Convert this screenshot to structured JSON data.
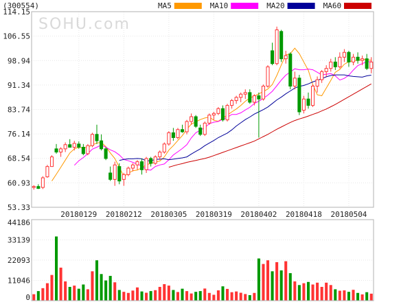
{
  "header": {
    "code": "(300554)",
    "watermark": "SOHU.com"
  },
  "legend": [
    {
      "label": "MA5",
      "color": "#ff9900"
    },
    {
      "label": "MA10",
      "color": "#ff00ff"
    },
    {
      "label": "MA20",
      "color": "#000099"
    },
    {
      "label": "MA60",
      "color": "#cc0000"
    }
  ],
  "colors": {
    "up": "#ff3333",
    "down": "#009900",
    "grid": "#e6e6e6",
    "frame": "#b0b0b0"
  },
  "chart_data": [
    {
      "type": "candlestick",
      "y_ticks": [
        "114.15",
        "106.55",
        "98.94",
        "91.34",
        "83.74",
        "76.14",
        "68.54",
        "60.93",
        "53.33"
      ],
      "ylim": [
        53.33,
        114.15
      ],
      "x_tick_labels": [
        {
          "index": 10,
          "label": "20180129"
        },
        {
          "index": 20,
          "label": "20180212"
        },
        {
          "index": 30,
          "label": "20180305"
        },
        {
          "index": 40,
          "label": "20180319"
        },
        {
          "index": 50,
          "label": "20180402"
        },
        {
          "index": 60,
          "label": "20180418"
        },
        {
          "index": 70,
          "label": "20180504"
        }
      ],
      "ohlc": [
        [
          59.5,
          60.2,
          58.8,
          59.8
        ],
        [
          59.8,
          60.5,
          59.0,
          59.2
        ],
        [
          59.5,
          63.0,
          59.0,
          62.5
        ],
        [
          62.8,
          66.5,
          62.5,
          66.0
        ],
        [
          66.0,
          69.5,
          66.0,
          69.0
        ],
        [
          71.5,
          73.0,
          70.0,
          70.5
        ],
        [
          70.5,
          72.0,
          69.0,
          71.5
        ],
        [
          71.5,
          73.5,
          70.5,
          72.8
        ],
        [
          72.8,
          74.5,
          72.0,
          72.0
        ],
        [
          72.0,
          74.0,
          71.0,
          73.2
        ],
        [
          73.0,
          73.8,
          71.5,
          72.0
        ],
        [
          72.0,
          73.0,
          69.5,
          70.0
        ],
        [
          70.0,
          73.0,
          69.5,
          72.5
        ],
        [
          72.5,
          76.5,
          72.0,
          76.0
        ],
        [
          76.0,
          79.0,
          73.0,
          74.0
        ],
        [
          74.0,
          76.0,
          71.0,
          71.5
        ],
        [
          71.5,
          72.0,
          68.0,
          68.5
        ],
        [
          64.0,
          66.0,
          61.5,
          62.0
        ],
        [
          62.0,
          67.5,
          60.0,
          66.5
        ],
        [
          66.0,
          67.0,
          60.5,
          61.5
        ],
        [
          62.0,
          64.0,
          60.0,
          63.5
        ],
        [
          63.5,
          66.0,
          63.0,
          65.5
        ],
        [
          65.5,
          67.0,
          64.5,
          66.5
        ],
        [
          66.5,
          68.0,
          65.0,
          67.5
        ],
        [
          67.5,
          68.5,
          63.5,
          65.0
        ],
        [
          65.0,
          69.0,
          64.0,
          68.5
        ],
        [
          68.5,
          69.0,
          66.0,
          67.0
        ],
        [
          67.0,
          69.5,
          66.5,
          69.0
        ],
        [
          69.0,
          71.0,
          68.0,
          70.5
        ],
        [
          70.5,
          73.5,
          70.0,
          73.0
        ],
        [
          73.0,
          77.0,
          72.5,
          76.5
        ],
        [
          76.5,
          78.0,
          74.0,
          75.0
        ],
        [
          75.0,
          78.0,
          74.5,
          77.5
        ],
        [
          77.5,
          79.0,
          76.5,
          76.8
        ],
        [
          76.8,
          80.5,
          76.0,
          80.0
        ],
        [
          80.0,
          82.5,
          79.0,
          81.5
        ],
        [
          81.5,
          82.0,
          78.0,
          78.5
        ],
        [
          78.0,
          79.0,
          75.5,
          76.0
        ],
        [
          76.0,
          80.0,
          75.5,
          79.5
        ],
        [
          79.5,
          82.5,
          79.0,
          82.0
        ],
        [
          82.0,
          83.0,
          80.5,
          82.5
        ],
        [
          82.5,
          84.5,
          82.0,
          84.0
        ],
        [
          84.0,
          85.0,
          80.0,
          80.5
        ],
        [
          80.5,
          85.5,
          80.0,
          85.0
        ],
        [
          85.0,
          87.0,
          84.0,
          86.5
        ],
        [
          86.5,
          88.0,
          85.5,
          87.5
        ],
        [
          87.5,
          89.0,
          86.0,
          88.5
        ],
        [
          88.5,
          90.0,
          87.0,
          89.0
        ],
        [
          89.0,
          90.0,
          85.5,
          86.0
        ],
        [
          86.0,
          88.5,
          85.0,
          88.0
        ],
        [
          88.0,
          89.0,
          75.0,
          87.0
        ],
        [
          87.0,
          91.5,
          86.5,
          91.0
        ],
        [
          91.0,
          97.5,
          90.5,
          97.0
        ],
        [
          102.0,
          104.5,
          97.5,
          98.0
        ],
        [
          98.0,
          109.5,
          97.5,
          108.5
        ],
        [
          108.0,
          108.5,
          98.5,
          99.5
        ],
        [
          99.5,
          102.0,
          98.0,
          100.5
        ],
        [
          101.0,
          101.5,
          90.0,
          91.0
        ],
        [
          91.0,
          95.5,
          90.0,
          93.5
        ],
        [
          93.5,
          94.5,
          82.0,
          83.0
        ],
        [
          83.5,
          88.0,
          82.5,
          87.0
        ],
        [
          87.0,
          89.0,
          84.0,
          85.0
        ],
        [
          85.0,
          91.5,
          84.5,
          91.0
        ],
        [
          91.0,
          94.0,
          89.0,
          93.0
        ],
        [
          93.0,
          96.0,
          92.0,
          95.5
        ],
        [
          95.5,
          97.5,
          94.0,
          96.5
        ],
        [
          96.5,
          99.5,
          95.5,
          98.5
        ],
        [
          98.5,
          100.0,
          96.0,
          97.0
        ],
        [
          97.0,
          101.5,
          96.5,
          100.0
        ],
        [
          100.0,
          102.5,
          98.5,
          101.5
        ],
        [
          101.5,
          102.0,
          97.0,
          98.5
        ],
        [
          98.5,
          101.0,
          97.5,
          100.0
        ],
        [
          100.0,
          101.5,
          98.0,
          99.0
        ],
        [
          99.0,
          100.5,
          97.5,
          99.5
        ],
        [
          99.5,
          101.0,
          96.0,
          96.5
        ],
        [
          96.5,
          100.0,
          95.0,
          98.5
        ]
      ],
      "ma5": [
        null,
        null,
        null,
        null,
        61.5,
        63.6,
        65.8,
        68.0,
        70.2,
        71.5,
        72.0,
        71.8,
        72.0,
        72.7,
        73.3,
        73.5,
        72.2,
        70.2,
        68.5,
        65.8,
        62.9,
        63.9,
        64.7,
        64.9,
        65.6,
        66.6,
        66.9,
        67.4,
        67.7,
        69.0,
        71.1,
        72.5,
        74.1,
        75.6,
        77.6,
        79.2,
        79.9,
        80.6,
        81.1,
        81.4,
        80.4,
        80.1,
        81.1,
        82.0,
        83.0,
        83.9,
        85.0,
        86.3,
        87.3,
        87.9,
        88.6,
        89.3,
        90.1,
        91.5,
        94.3,
        97.6,
        100.7,
        101.1,
        102.8,
        101.1,
        98.5,
        95.9,
        91.5,
        88.3,
        88.0,
        90.4,
        92.8,
        95.3,
        96.2,
        97.8,
        98.6,
        98.9,
        99.0,
        99.3,
        99.3,
        99.0
      ],
      "ma10": [
        null,
        null,
        null,
        null,
        null,
        null,
        null,
        null,
        null,
        66.4,
        67.8,
        68.8,
        70.0,
        71.4,
        72.0,
        72.7,
        72.0,
        71.2,
        70.6,
        69.6,
        68.2,
        67.8,
        67.3,
        66.7,
        66.2,
        65.0,
        64.9,
        66.0,
        66.5,
        66.8,
        68.1,
        69.6,
        70.6,
        71.6,
        72.8,
        74.9,
        76.5,
        77.3,
        78.1,
        79.3,
        79.8,
        80.0,
        80.7,
        81.3,
        82.2,
        82.2,
        82.7,
        83.6,
        84.4,
        85.6,
        86.3,
        87.2,
        88.2,
        89.4,
        91.1,
        92.9,
        94.4,
        95.4,
        96.4,
        96.1,
        96.1,
        96.3,
        96.1,
        95.3,
        94.5,
        94.7,
        94.9,
        94.2,
        92.9,
        93.4,
        94.4,
        96.0,
        97.4,
        98.0,
        98.6,
        98.6
      ],
      "ma20": [
        null,
        null,
        null,
        null,
        null,
        null,
        null,
        null,
        null,
        null,
        null,
        null,
        null,
        null,
        null,
        null,
        null,
        null,
        null,
        67.9,
        68.2,
        68.4,
        68.4,
        68.5,
        68.4,
        67.8,
        67.8,
        68.2,
        68.3,
        68.4,
        68.1,
        68.3,
        68.5,
        68.7,
        69.0,
        69.9,
        70.7,
        71.5,
        72.5,
        73.3,
        74.1,
        75.0,
        75.7,
        76.4,
        77.4,
        78.6,
        79.6,
        80.6,
        81.4,
        82.3,
        83.0,
        83.7,
        84.5,
        85.6,
        86.7,
        87.6,
        88.6,
        89.5,
        90.4,
        90.9,
        91.2,
        91.7,
        92.3,
        92.8,
        93.3,
        93.9,
        94.3,
        94.5,
        94.5,
        94.5,
        94.2,
        94.0,
        93.9,
        93.8,
        94.2,
        94.4
      ],
      "ma60": [
        null,
        null,
        null,
        null,
        null,
        null,
        null,
        null,
        null,
        null,
        null,
        null,
        null,
        null,
        null,
        null,
        null,
        null,
        null,
        null,
        null,
        null,
        null,
        null,
        null,
        null,
        null,
        null,
        null,
        null,
        65.8,
        66.2,
        66.6,
        66.9,
        67.3,
        67.6,
        67.9,
        68.2,
        68.5,
        68.9,
        69.4,
        69.9,
        70.4,
        70.9,
        71.4,
        71.9,
        72.4,
        72.9,
        73.4,
        73.9,
        74.6,
        75.3,
        76.0,
        76.8,
        77.6,
        78.3,
        79.0,
        79.7,
        80.3,
        80.8,
        81.2,
        81.7,
        82.2,
        82.7,
        83.3,
        83.9,
        84.6,
        85.3,
        86.1,
        86.9,
        87.7,
        88.5,
        89.3,
        90.1,
        90.9,
        91.7
      ]
    },
    {
      "type": "bar",
      "y_ticks": [
        "44186",
        "33139",
        "22093",
        "11046",
        "0"
      ],
      "ylim": [
        0,
        44186
      ],
      "volume": [
        3500,
        5200,
        6800,
        9500,
        14000,
        35000,
        18000,
        10500,
        7500,
        8200,
        6500,
        8800,
        6200,
        16000,
        22000,
        14500,
        11000,
        13500,
        10000,
        5800,
        4800,
        4200,
        5500,
        7200,
        5000,
        4300,
        5200,
        5700,
        7500,
        9000,
        8200,
        5800,
        4700,
        6500,
        5200,
        3900,
        4800,
        5200,
        6600,
        4200,
        3200,
        5600,
        7800,
        6400,
        4600,
        5000,
        4300,
        3600,
        3000,
        4200,
        23000,
        20000,
        22000,
        16000,
        21000,
        16500,
        21500,
        15000,
        10500,
        8500,
        9500,
        10200,
        8800,
        9800,
        7500,
        9800,
        8500,
        6200,
        5400,
        5600,
        4800,
        5900,
        4200,
        3400,
        4600,
        3800
      ]
    }
  ]
}
